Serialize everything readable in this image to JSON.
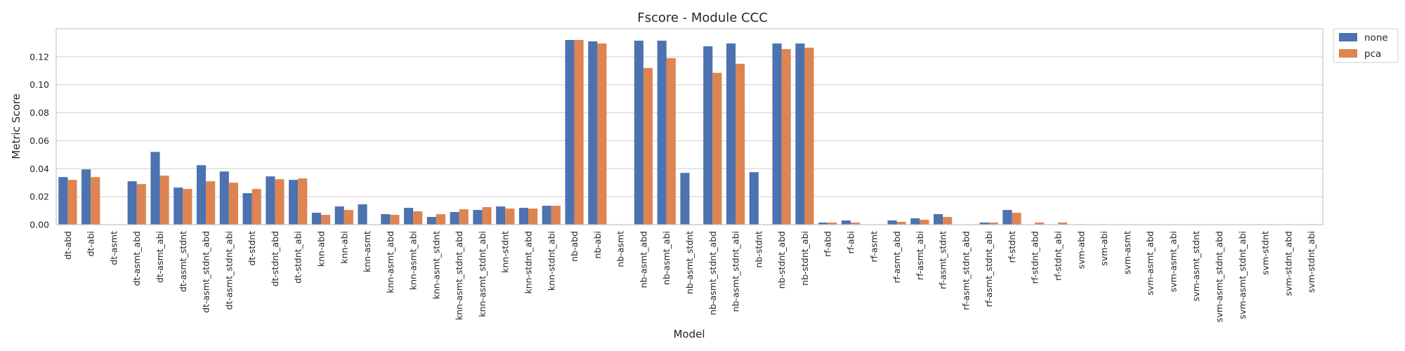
{
  "chart_data": {
    "type": "bar",
    "title": "Fscore - Module CCC",
    "xlabel": "Model",
    "ylabel": "Metric Score",
    "ylim": [
      0,
      0.14
    ],
    "yticks": [
      "0.00",
      "0.02",
      "0.04",
      "0.06",
      "0.08",
      "0.10",
      "0.12"
    ],
    "grid": true,
    "legend_position": "upper-right-outside",
    "categories": [
      "dt-abd",
      "dt-abi",
      "dt-asmt",
      "dt-asmt_abd",
      "dt-asmt_abi",
      "dt-asmt_stdnt",
      "dt-asmt_stdnt_abd",
      "dt-asmt_stdnt_abi",
      "dt-stdnt",
      "dt-stdnt_abd",
      "dt-stdnt_abi",
      "knn-abd",
      "knn-abi",
      "knn-asmt",
      "knn-asmt_abd",
      "knn-asmt_abi",
      "knn-asmt_stdnt",
      "knn-asmt_stdnt_abd",
      "knn-asmt_stdnt_abi",
      "knn-stdnt",
      "knn-stdnt_abd",
      "knn-stdnt_abi",
      "nb-abd",
      "nb-abi",
      "nb-asmt",
      "nb-asmt_abd",
      "nb-asmt_abi",
      "nb-asmt_stdnt",
      "nb-asmt_stdnt_abd",
      "nb-asmt_stdnt_abi",
      "nb-stdnt",
      "nb-stdnt_abd",
      "nb-stdnt_abi",
      "rf-abd",
      "rf-abi",
      "rf-asmt",
      "rf-asmt_abd",
      "rf-asmt_abi",
      "rf-asmt_stdnt",
      "rf-asmt_stdnt_abd",
      "rf-asmt_stdnt_abi",
      "rf-stdnt",
      "rf-stdnt_abd",
      "rf-stdnt_abi",
      "svm-abd",
      "svm-abi",
      "svm-asmt",
      "svm-asmt_abd",
      "svm-asmt_abi",
      "svm-asmt_stdnt",
      "svm-asmt_stdnt_abd",
      "svm-asmt_stdnt_abi",
      "svm-stdnt",
      "svm-stdnt_abd",
      "svm-stdnt_abi"
    ],
    "series": [
      {
        "name": "none",
        "color": "#4c72b0",
        "values": [
          0.034,
          0.0395,
          0,
          0.031,
          0.052,
          0.0265,
          0.0425,
          0.038,
          0.0225,
          0.0345,
          0.032,
          0.0085,
          0.013,
          0.0145,
          0.0075,
          0.012,
          0.0055,
          0.009,
          0.0105,
          0.013,
          0.012,
          0.0135,
          0.132,
          0.131,
          0,
          0.1315,
          0.1315,
          0.037,
          0.1275,
          0.1295,
          0.0375,
          0.1295,
          0.1295,
          0.0015,
          0.003,
          0,
          0.003,
          0.0045,
          0.0075,
          0,
          0.0015,
          0.0105,
          0,
          0,
          0,
          0,
          0,
          0,
          0,
          0,
          0,
          0,
          0,
          0,
          0
        ]
      },
      {
        "name": "pca",
        "color": "#dd8452",
        "values": [
          0.032,
          0.034,
          0,
          0.029,
          0.035,
          0.0255,
          0.031,
          0.03,
          0.0255,
          0.0325,
          0.033,
          0.007,
          0.0105,
          0,
          0.007,
          0.0095,
          0.0075,
          0.011,
          0.0125,
          0.0115,
          0.0115,
          0.0135,
          0.132,
          0.1295,
          0,
          0.112,
          0.119,
          0,
          0.1085,
          0.115,
          0,
          0.1255,
          0.1265,
          0.0015,
          0.0015,
          0,
          0.002,
          0.0035,
          0.0055,
          0,
          0.0015,
          0.0085,
          0.0015,
          0.0015,
          0,
          0,
          0,
          0,
          0,
          0,
          0,
          0,
          0,
          0,
          0
        ]
      }
    ]
  }
}
